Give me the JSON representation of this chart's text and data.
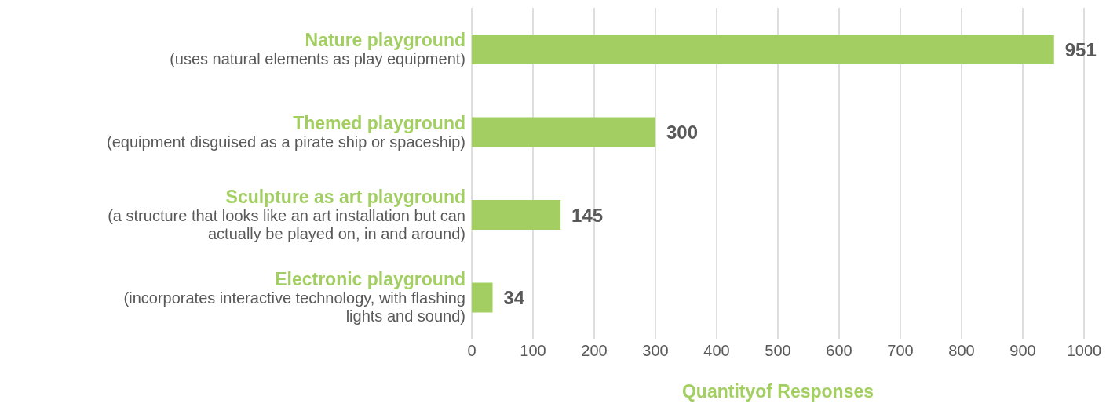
{
  "chart_data": {
    "type": "bar",
    "orientation": "horizontal",
    "categories": [
      "Nature playground\n(uses natural elements as play equipment)",
      "Themed playground\n(equipment disguised as a pirate ship or spaceship)",
      "Sculpture as art playground\n(a structure that looks like an art installation but can\nactually be played on, in and around)",
      "Electronic playground\n(incorporates interactive technology, with flashing\nlights and sound)"
    ],
    "values": [
      951,
      300,
      145,
      34
    ],
    "color": "#a3cf62",
    "xlabel": "Quantityof Responses",
    "xlim": [
      0,
      1000
    ],
    "xticks": [
      0,
      100,
      200,
      300,
      400,
      500,
      600,
      700,
      800,
      900,
      1000
    ],
    "grid": "x",
    "data_labels": true
  }
}
